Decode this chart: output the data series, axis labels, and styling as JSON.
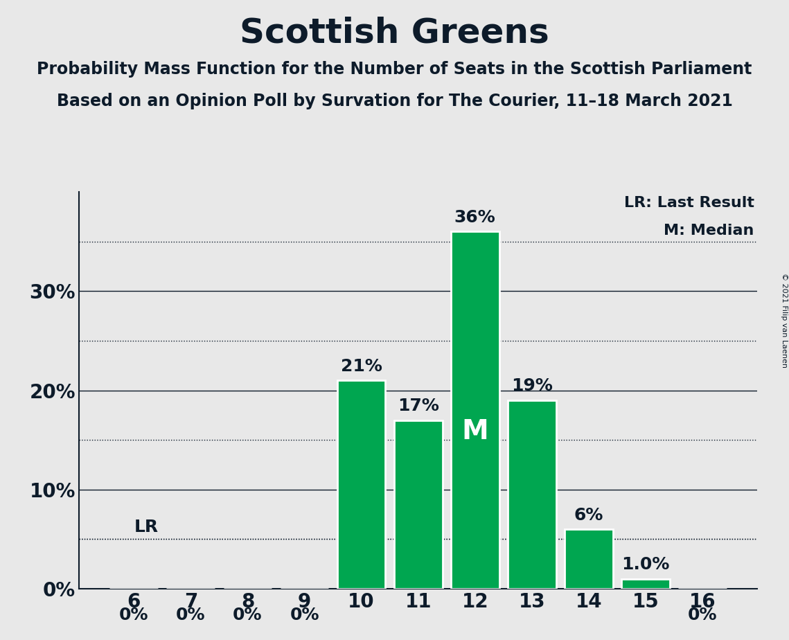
{
  "title": "Scottish Greens",
  "subtitle1": "Probability Mass Function for the Number of Seats in the Scottish Parliament",
  "subtitle2": "Based on an Opinion Poll by Survation for The Courier, 11–18 March 2021",
  "copyright": "© 2021 Filip van Laenen",
  "categories": [
    6,
    7,
    8,
    9,
    10,
    11,
    12,
    13,
    14,
    15,
    16
  ],
  "values": [
    0.0,
    0.0,
    0.0,
    0.0,
    21.0,
    17.0,
    36.0,
    19.0,
    6.0,
    1.0,
    0.0
  ],
  "bar_color": "#00a650",
  "bar_edge_color": "#ffffff",
  "background_color": "#e8e8e8",
  "text_color": "#0d1b2a",
  "lr_value": 5.0,
  "lr_label": "LR",
  "median_seat": 12,
  "median_label": "M",
  "legend_lr": "LR: Last Result",
  "legend_m": "M: Median",
  "yticks_solid": [
    10,
    20,
    30
  ],
  "yticks_dotted": [
    5,
    15,
    25,
    35
  ],
  "ytick_labels": [
    0,
    10,
    20,
    30
  ],
  "ylim": [
    0,
    40
  ],
  "bar_labels": [
    "0%",
    "0%",
    "0%",
    "0%",
    "21%",
    "17%",
    "36%",
    "19%",
    "6%",
    "1.0%",
    "0%"
  ]
}
